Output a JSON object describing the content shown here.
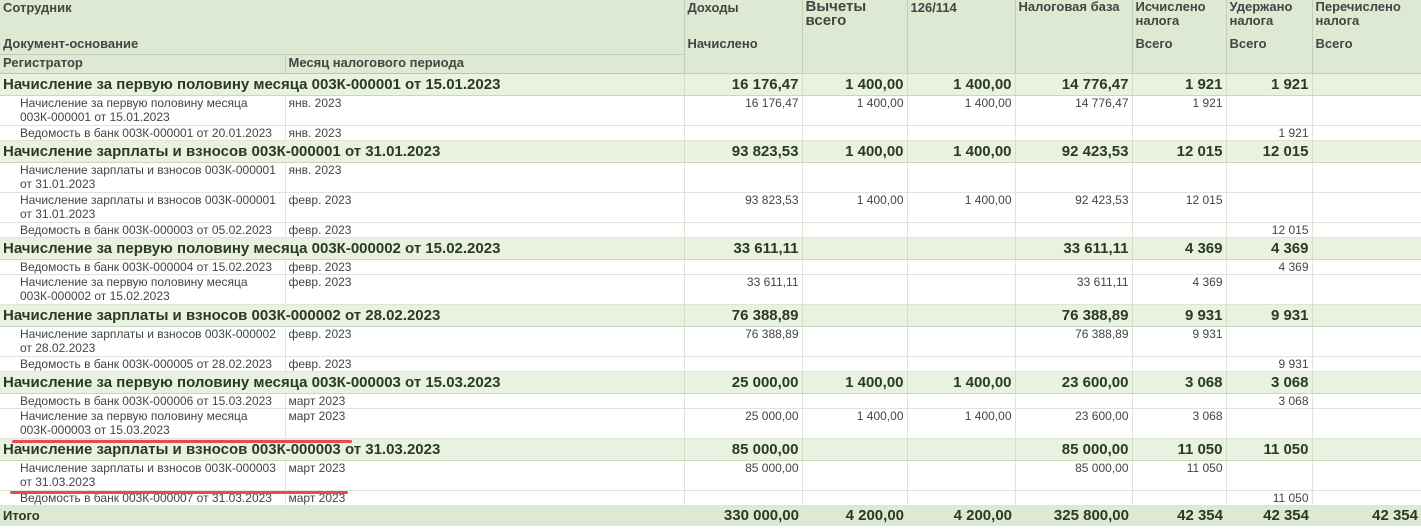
{
  "header": {
    "employee": "Сотрудник",
    "doc_basis": "Документ-основание",
    "registrar": "Регистратор",
    "month": "Месяц налогового периода",
    "income": "Доходы",
    "accrued": "Начислено",
    "deductions": "Вычеты всего",
    "code126": "126/114",
    "tax_base": "Налоговая база",
    "calculated": "Исчислено налога",
    "withheld": "Удержано налога",
    "transferred": "Перечислено налога",
    "total": "Всего"
  },
  "groups": [
    {
      "title": "Начисление за первую половину месяца 003К-000001 от 15.01.2023",
      "accrued": "16 176,47",
      "deductions": "1 400,00",
      "code126": "1 400,00",
      "tax_base": "14 776,47",
      "calculated": "1 921",
      "withheld": "1 921",
      "transferred": "",
      "rows": [
        {
          "doc": "Начисление за первую половину месяца 003К-000001 от 15.01.2023",
          "month": "янв. 2023",
          "accrued": "16 176,47",
          "deductions": "1 400,00",
          "code126": "1 400,00",
          "tax_base": "14 776,47",
          "calculated": "1 921",
          "withheld": "",
          "lines": 2
        },
        {
          "doc": "Ведомость в банк 003К-000001 от 20.01.2023",
          "month": "янв. 2023",
          "accrued": "",
          "deductions": "",
          "code126": "",
          "tax_base": "",
          "calculated": "",
          "withheld": "1 921",
          "lines": 1
        }
      ]
    },
    {
      "title": "Начисление зарплаты и взносов 003К-000001 от 31.01.2023",
      "accrued": "93 823,53",
      "deductions": "1 400,00",
      "code126": "1 400,00",
      "tax_base": "92 423,53",
      "calculated": "12 015",
      "withheld": "12 015",
      "transferred": "",
      "rows": [
        {
          "doc": "Начисление зарплаты и взносов 003К-000001 от 31.01.2023",
          "month": "янв. 2023",
          "accrued": "",
          "deductions": "",
          "code126": "",
          "tax_base": "",
          "calculated": "",
          "withheld": "",
          "lines": 2
        },
        {
          "doc": "Начисление зарплаты и взносов 003К-000001 от 31.01.2023",
          "month": "февр. 2023",
          "accrued": "93 823,53",
          "deductions": "1 400,00",
          "code126": "1 400,00",
          "tax_base": "92 423,53",
          "calculated": "12 015",
          "withheld": "",
          "lines": 2
        },
        {
          "doc": "Ведомость в банк 003К-000003 от 05.02.2023",
          "month": "февр. 2023",
          "accrued": "",
          "deductions": "",
          "code126": "",
          "tax_base": "",
          "calculated": "",
          "withheld": "12 015",
          "lines": 1
        }
      ]
    },
    {
      "title": "Начисление за первую половину месяца 003К-000002 от 15.02.2023",
      "accrued": "33 611,11",
      "deductions": "",
      "code126": "",
      "tax_base": "33 611,11",
      "calculated": "4 369",
      "withheld": "4 369",
      "transferred": "",
      "rows": [
        {
          "doc": "Ведомость в банк 003К-000004 от 15.02.2023",
          "month": "февр. 2023",
          "accrued": "",
          "deductions": "",
          "code126": "",
          "tax_base": "",
          "calculated": "",
          "withheld": "4 369",
          "lines": 1
        },
        {
          "doc": "Начисление за первую половину месяца 003К-000002 от 15.02.2023",
          "month": "февр. 2023",
          "accrued": "33 611,11",
          "deductions": "",
          "code126": "",
          "tax_base": "33 611,11",
          "calculated": "4 369",
          "withheld": "",
          "lines": 2
        }
      ]
    },
    {
      "title": "Начисление зарплаты и взносов 003К-000002 от 28.02.2023",
      "accrued": "76 388,89",
      "deductions": "",
      "code126": "",
      "tax_base": "76 388,89",
      "calculated": "9 931",
      "withheld": "9 931",
      "transferred": "",
      "rows": [
        {
          "doc": "Начисление зарплаты и взносов 003К-000002 от 28.02.2023",
          "month": "февр. 2023",
          "accrued": "76 388,89",
          "deductions": "",
          "code126": "",
          "tax_base": "76 388,89",
          "calculated": "9 931",
          "withheld": "",
          "lines": 2
        },
        {
          "doc": "Ведомость в банк 003К-000005 от 28.02.2023",
          "month": "февр. 2023",
          "accrued": "",
          "deductions": "",
          "code126": "",
          "tax_base": "",
          "calculated": "",
          "withheld": "9 931",
          "lines": 1
        }
      ]
    },
    {
      "title": "Начисление за первую половину месяца 003К-000003 от 15.03.2023",
      "accrued": "25 000,00",
      "deductions": "1 400,00",
      "code126": "1 400,00",
      "tax_base": "23 600,00",
      "calculated": "3 068",
      "withheld": "3 068",
      "transferred": "",
      "rows": [
        {
          "doc": "Ведомость в банк 003К-000006 от 15.03.2023",
          "month": "март 2023",
          "accrued": "",
          "deductions": "",
          "code126": "",
          "tax_base": "",
          "calculated": "",
          "withheld": "3 068",
          "lines": 1
        },
        {
          "doc": "Начисление за первую половину месяца 003К-000003 от 15.03.2023",
          "month": "март 2023",
          "accrued": "25 000,00",
          "deductions": "1 400,00",
          "code126": "1 400,00",
          "tax_base": "23 600,00",
          "calculated": "3 068",
          "withheld": "",
          "lines": 2
        }
      ]
    },
    {
      "title": "Начисление зарплаты и взносов 003К-000003 от 31.03.2023",
      "accrued": "85 000,00",
      "deductions": "",
      "code126": "",
      "tax_base": "85 000,00",
      "calculated": "11 050",
      "withheld": "11 050",
      "transferred": "",
      "rows": [
        {
          "doc": "Начисление зарплаты и взносов 003К-000003 от 31.03.2023",
          "month": "март 2023",
          "accrued": "85 000,00",
          "deductions": "",
          "code126": "",
          "tax_base": "85 000,00",
          "calculated": "11 050",
          "withheld": "",
          "lines": 2
        },
        {
          "doc": "Ведомость в банк 003К-000007 от 31.03.2023",
          "month": "март 2023",
          "accrued": "",
          "deductions": "",
          "code126": "",
          "tax_base": "",
          "calculated": "",
          "withheld": "11 050",
          "lines": 1
        }
      ]
    }
  ],
  "totals": {
    "label": "Итого",
    "accrued": "330 000,00",
    "deductions": "4 200,00",
    "code126": "4 200,00",
    "tax_base": "325 800,00",
    "calculated": "42 354",
    "withheld": "42 354",
    "transferred": "42 354"
  },
  "annotation_color": "#e64c4c"
}
